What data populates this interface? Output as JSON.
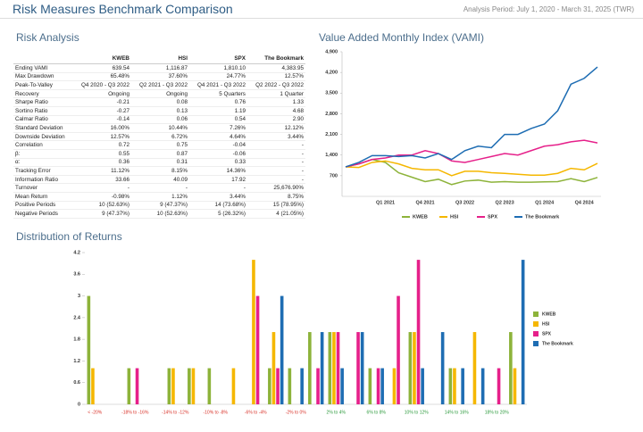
{
  "header": {
    "title": "Risk Measures Benchmark Comparison",
    "period": "Analysis Period: July 1, 2020 - March 31, 2025 (TWR)"
  },
  "table": {
    "title": "Risk Analysis",
    "columns": [
      "KWEB",
      "HSI",
      "SPX",
      "The Bookmark"
    ],
    "rows": [
      [
        "Ending VAMI",
        "639.54",
        "1,116.87",
        "1,810.10",
        "4,383.95"
      ],
      [
        "Max Drawdown",
        "65.48%",
        "37.60%",
        "24.77%",
        "12.57%"
      ],
      [
        "Peak-To-Valley",
        "Q4 2020 - Q3 2022",
        "Q2 2021 - Q3 2022",
        "Q4 2021 - Q3 2022",
        "Q2 2022 - Q3 2022"
      ],
      [
        "Recovery",
        "Ongoing",
        "Ongoing",
        "5 Quarters",
        "1 Quarter"
      ],
      [
        "Sharpe Ratio",
        "-0.21",
        "0.08",
        "0.76",
        "1.33"
      ],
      [
        "Sortino Ratio",
        "-0.27",
        "0.13",
        "1.19",
        "4.68"
      ],
      [
        "Calmar Ratio",
        "-0.14",
        "0.06",
        "0.54",
        "2.90"
      ],
      [
        "Standard Deviation",
        "16.00%",
        "10.44%",
        "7.26%",
        "12.12%"
      ],
      [
        "Downside Deviation",
        "12.57%",
        "6.72%",
        "4.64%",
        "3.44%"
      ],
      [
        "Correlation",
        "0.72",
        "0.75",
        "-0.04",
        "-"
      ],
      [
        "β:",
        "0.55",
        "0.87",
        "-0.06",
        "-"
      ],
      [
        "α:",
        "0.36",
        "0.31",
        "0.33",
        "-"
      ],
      [
        "Tracking Error",
        "11.12%",
        "8.15%",
        "14.36%",
        "-"
      ],
      [
        "Information Ratio",
        "33.66",
        "40.09",
        "17.92",
        "-"
      ],
      [
        "Turnover",
        "-",
        "-",
        "-",
        "25,676.90%"
      ],
      [
        "Mean Return",
        "-0.98%",
        "1.12%",
        "3.44%",
        "8.75%"
      ],
      [
        "Positive Periods",
        "10 (52.63%)",
        "9 (47.37%)",
        "14 (73.68%)",
        "15 (78.95%)"
      ],
      [
        "Negative Periods",
        "9 (47.37%)",
        "10 (52.63%)",
        "5 (26.32%)",
        "4 (21.05%)"
      ]
    ]
  },
  "chart_data": [
    {
      "type": "line",
      "title": "Value Added Monthly Index (VAMI)",
      "categories": [
        null,
        null,
        null,
        "Q1 2021",
        null,
        null,
        "Q4 2021",
        null,
        null,
        "Q3 2022",
        null,
        null,
        "Q2 2023",
        null,
        null,
        "Q1 2024",
        null,
        null,
        "Q4 2024",
        null
      ],
      "ylim": [
        0,
        4900
      ],
      "yticks": [
        700,
        {
          "value": 1400,
          "label": "1,400"
        },
        {
          "value": 2100,
          "label": "2,100"
        },
        {
          "value": 2800,
          "label": "2,800"
        },
        {
          "value": 3500,
          "label": "3,500"
        },
        {
          "value": 4200,
          "label": "4,200"
        },
        {
          "value": 4900,
          "label": "4,900"
        }
      ],
      "grid": false,
      "legend": "bottom",
      "series": [
        {
          "name": "KWEB",
          "color": "#8db33a",
          "values": [
            1000,
            1100,
            1250,
            1150,
            800,
            650,
            500,
            580,
            400,
            520,
            550,
            480,
            500,
            480,
            480,
            490,
            500,
            600,
            500,
            640
          ]
        },
        {
          "name": "HSI",
          "color": "#f5b700",
          "values": [
            1000,
            980,
            1150,
            1200,
            1100,
            950,
            900,
            900,
            700,
            850,
            850,
            800,
            780,
            750,
            720,
            720,
            780,
            950,
            900,
            1117
          ]
        },
        {
          "name": "SPX",
          "color": "#e6208a",
          "values": [
            1000,
            1100,
            1250,
            1300,
            1400,
            1400,
            1550,
            1450,
            1200,
            1150,
            1250,
            1350,
            1450,
            1400,
            1550,
            1700,
            1750,
            1850,
            1900,
            1810
          ]
        },
        {
          "name": "The Bookmark",
          "color": "#1e6db3",
          "values": [
            1000,
            1150,
            1380,
            1380,
            1350,
            1380,
            1300,
            1450,
            1250,
            1550,
            1700,
            1650,
            2100,
            2100,
            2300,
            2450,
            2900,
            3800,
            4000,
            4384
          ]
        }
      ]
    },
    {
      "type": "bar",
      "title": "Distribution of Returns",
      "categories": [
        "< -20%",
        null,
        "-18% to -16%",
        null,
        "-14% to -12%",
        null,
        "-10% to -8%",
        null,
        "-6% to -4%",
        null,
        "-2% to 0%",
        null,
        "2% to 4%",
        null,
        "6% to 8%",
        null,
        "10% to 12%",
        null,
        "14% to 16%",
        null,
        "18% to 20%",
        null
      ],
      "ylim": [
        0,
        4.2
      ],
      "yticks": [
        0,
        0.6,
        1.2,
        1.8,
        2.4,
        3,
        3.6,
        4.2
      ],
      "grid": false,
      "legend": "right",
      "series": [
        {
          "name": "KWEB",
          "color": "#8db33a",
          "values": [
            3,
            0,
            1,
            0,
            1,
            1,
            1,
            0,
            0,
            1,
            1,
            2,
            2,
            0,
            1,
            0,
            2,
            0,
            1,
            0,
            0,
            2
          ]
        },
        {
          "name": "HSI",
          "color": "#f5b700",
          "values": [
            1,
            0,
            0,
            0,
            1,
            1,
            0,
            1,
            4,
            2,
            0,
            0,
            2,
            0,
            0,
            1,
            2,
            0,
            1,
            2,
            0,
            1
          ]
        },
        {
          "name": "SPX",
          "color": "#e6208a",
          "values": [
            0,
            0,
            1,
            0,
            0,
            0,
            0,
            0,
            3,
            1,
            0,
            1,
            2,
            2,
            1,
            3,
            4,
            0,
            0,
            0,
            1,
            0
          ]
        },
        {
          "name": "The Bookmark",
          "color": "#1e6db3",
          "values": [
            0,
            0,
            0,
            0,
            0,
            0,
            0,
            0,
            0,
            3,
            1,
            2,
            1,
            2,
            1,
            0,
            1,
            2,
            1,
            1,
            0,
            4
          ]
        }
      ]
    }
  ]
}
